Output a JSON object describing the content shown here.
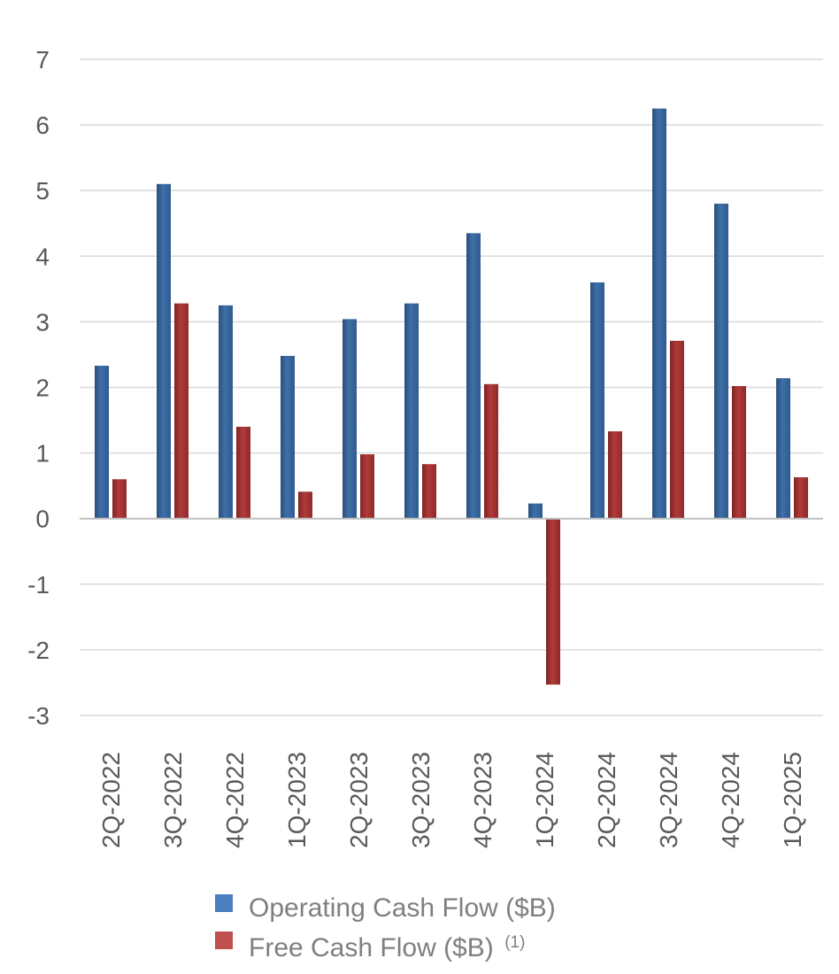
{
  "chart_data": {
    "type": "bar",
    "categories": [
      "2Q-2022",
      "3Q-2022",
      "4Q-2022",
      "1Q-2023",
      "2Q-2023",
      "3Q-2023",
      "4Q-2023",
      "1Q-2024",
      "2Q-2024",
      "3Q-2024",
      "4Q-2024",
      "1Q-2025"
    ],
    "series": [
      {
        "name": "Operating Cash Flow ($B)",
        "color": "#2e5a8f",
        "values": [
          2.33,
          5.1,
          3.25,
          2.48,
          3.04,
          3.28,
          4.35,
          0.23,
          3.6,
          6.25,
          4.8,
          2.14
        ]
      },
      {
        "name": "Free Cash Flow ($B)",
        "footnote": "(1)",
        "color": "#9b2c2c",
        "values": [
          0.6,
          3.28,
          1.4,
          0.41,
          0.98,
          0.83,
          2.05,
          -2.53,
          1.33,
          2.71,
          2.02,
          0.63
        ]
      }
    ],
    "ylim": [
      -3,
      7
    ],
    "yticks": [
      7,
      6,
      5,
      4,
      3,
      2,
      1,
      0,
      -1,
      -2,
      -3
    ],
    "grid": true,
    "legend_position": "bottom",
    "title": "",
    "xlabel": "",
    "ylabel": ""
  },
  "legend_colors": {
    "operating": "#4a7fc1",
    "free": "#c0504d"
  }
}
